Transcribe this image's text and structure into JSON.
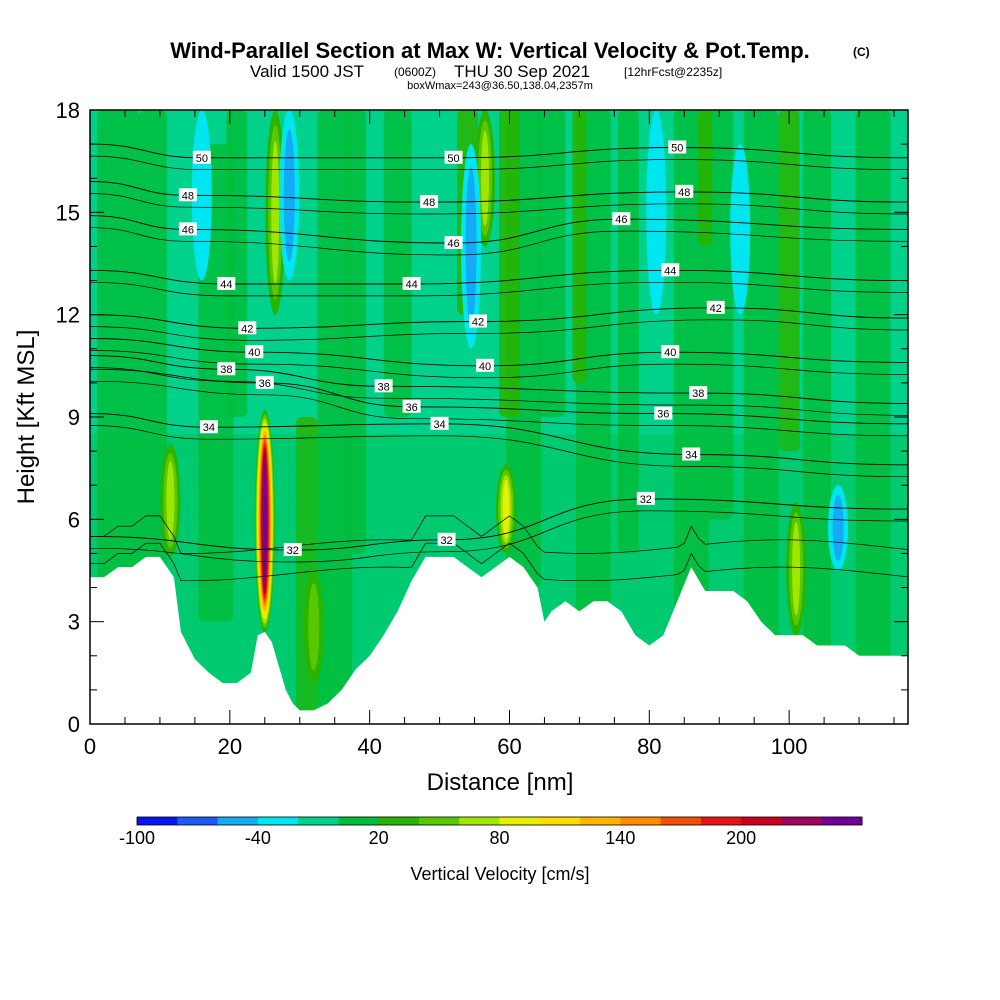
{
  "chart_data": {
    "type": "heatmap",
    "title": "Wind-Parallel Section at Max W: Vertical Velocity & Pot.Temp.",
    "title_mark": "(C)",
    "subtitle_parts": {
      "valid": "Valid 1500 JST",
      "utc": "(0600Z)",
      "date": "THU 30 Sep 2021",
      "fcst": "[12hrFcst@2235z]"
    },
    "info_line": "boxWmax=243@36.50,138.04,2357m",
    "xlabel": "Distance [nm]",
    "ylabel": "Height [Kft MSL]",
    "xlim": [
      0,
      117
    ],
    "ylim": [
      0,
      18
    ],
    "x_ticks": [
      0,
      20,
      40,
      60,
      80,
      100
    ],
    "y_ticks": [
      0,
      3,
      6,
      9,
      12,
      15,
      18
    ],
    "colorbar": {
      "label": "Vertical Velocity [cm/s]",
      "colors": [
        "#0a14f0",
        "#1e5af5",
        "#14aaf5",
        "#00e6f0",
        "#00d28c",
        "#00be3c",
        "#28b400",
        "#5ac800",
        "#a0e600",
        "#e6f000",
        "#ffdc00",
        "#ffb400",
        "#ff8c00",
        "#f05000",
        "#e61414",
        "#c8001e",
        "#a0005a",
        "#6e0096"
      ],
      "tick_values": [
        -100,
        -40,
        20,
        80,
        140,
        200
      ],
      "tick_labels": [
        "-100",
        "-40",
        "20",
        "80",
        "140",
        "200"
      ]
    },
    "terrain_kft": [
      [
        0,
        4.3
      ],
      [
        2,
        4.3
      ],
      [
        4,
        4.6
      ],
      [
        6,
        4.6
      ],
      [
        8,
        4.9
      ],
      [
        10,
        4.9
      ],
      [
        12,
        4.3
      ],
      [
        13,
        2.7
      ],
      [
        15,
        1.9
      ],
      [
        17,
        1.5
      ],
      [
        19,
        1.2
      ],
      [
        21,
        1.2
      ],
      [
        23,
        1.5
      ],
      [
        24,
        2.6
      ],
      [
        25,
        2.7
      ],
      [
        26,
        2.4
      ],
      [
        27,
        1.7
      ],
      [
        28,
        1.0
      ],
      [
        29,
        0.6
      ],
      [
        30,
        0.4
      ],
      [
        32,
        0.4
      ],
      [
        34,
        0.6
      ],
      [
        36,
        1.0
      ],
      [
        38,
        1.6
      ],
      [
        40,
        2.0
      ],
      [
        42,
        2.6
      ],
      [
        44,
        3.3
      ],
      [
        46,
        4.2
      ],
      [
        48,
        4.9
      ],
      [
        50,
        4.9
      ],
      [
        52,
        4.9
      ],
      [
        54,
        4.6
      ],
      [
        56,
        4.3
      ],
      [
        58,
        4.6
      ],
      [
        60,
        4.9
      ],
      [
        62,
        4.6
      ],
      [
        64,
        4.0
      ],
      [
        65,
        3.0
      ],
      [
        66,
        3.3
      ],
      [
        68,
        3.6
      ],
      [
        70,
        3.3
      ],
      [
        72,
        3.6
      ],
      [
        74,
        3.6
      ],
      [
        76,
        3.3
      ],
      [
        78,
        2.6
      ],
      [
        80,
        2.3
      ],
      [
        82,
        2.6
      ],
      [
        84,
        3.6
      ],
      [
        86,
        4.6
      ],
      [
        88,
        3.9
      ],
      [
        90,
        3.9
      ],
      [
        92,
        3.9
      ],
      [
        94,
        3.6
      ],
      [
        96,
        3.0
      ],
      [
        98,
        2.6
      ],
      [
        100,
        2.6
      ],
      [
        102,
        2.6
      ],
      [
        104,
        2.3
      ],
      [
        106,
        2.3
      ],
      [
        108,
        2.3
      ],
      [
        110,
        2.0
      ],
      [
        114,
        2.0
      ],
      [
        117,
        2.0
      ]
    ],
    "updraft_cores": [
      {
        "x": 25.0,
        "y_bottom": 2.7,
        "y_top": 9.2,
        "max_w": 243
      },
      {
        "x": 59.5,
        "y_bottom": 5.0,
        "y_top": 7.6,
        "max_w": 80
      },
      {
        "x": 11.5,
        "y_bottom": 4.9,
        "y_top": 8.2,
        "max_w": 60
      },
      {
        "x": 101.0,
        "y_bottom": 2.6,
        "y_top": 6.5,
        "max_w": 50
      },
      {
        "x": 26.5,
        "y_bottom": 12.0,
        "y_top": 18.0,
        "max_w": 50
      },
      {
        "x": 56.5,
        "y_bottom": 14.0,
        "y_top": 18.0,
        "max_w": 50
      },
      {
        "x": 32.0,
        "y_bottom": 1.2,
        "y_top": 4.5,
        "max_w": 40
      }
    ],
    "downdraft_cores": [
      {
        "x": 28.5,
        "y_bottom": 13.0,
        "y_top": 18.0,
        "min_w": -40
      },
      {
        "x": 54.5,
        "y_bottom": 11.0,
        "y_top": 17.0,
        "min_w": -40
      },
      {
        "x": 81.0,
        "y_bottom": 12.0,
        "y_top": 18.0,
        "min_w": -30
      },
      {
        "x": 107.0,
        "y_bottom": 4.5,
        "y_top": 7.0,
        "min_w": -40
      },
      {
        "x": 16.0,
        "y_bottom": 13.0,
        "y_top": 18.0,
        "min_w": -30
      },
      {
        "x": 93.0,
        "y_bottom": 12.0,
        "y_top": 17.0,
        "min_w": -30
      }
    ],
    "potential_temperature_contours": {
      "interval_c": 1,
      "labels": [
        {
          "text": "50",
          "x": 16.0,
          "y": 16.6
        },
        {
          "text": "50",
          "x": 52.0,
          "y": 16.6
        },
        {
          "text": "50",
          "x": 84.0,
          "y": 16.9
        },
        {
          "text": "48",
          "x": 14.0,
          "y": 15.5
        },
        {
          "text": "48",
          "x": 48.5,
          "y": 15.3
        },
        {
          "text": "48",
          "x": 85.0,
          "y": 15.6
        },
        {
          "text": "46",
          "x": 14.0,
          "y": 14.5
        },
        {
          "text": "46",
          "x": 52.0,
          "y": 14.1
        },
        {
          "text": "46",
          "x": 76.0,
          "y": 14.8
        },
        {
          "text": "44",
          "x": 19.5,
          "y": 12.9
        },
        {
          "text": "44",
          "x": 46.0,
          "y": 12.9
        },
        {
          "text": "44",
          "x": 83.0,
          "y": 13.3
        },
        {
          "text": "42",
          "x": 22.5,
          "y": 11.6
        },
        {
          "text": "42",
          "x": 55.5,
          "y": 11.8
        },
        {
          "text": "42",
          "x": 89.5,
          "y": 12.2
        },
        {
          "text": "40",
          "x": 23.5,
          "y": 10.9
        },
        {
          "text": "40",
          "x": 56.5,
          "y": 10.5
        },
        {
          "text": "40",
          "x": 83.0,
          "y": 10.9
        },
        {
          "text": "38",
          "x": 19.5,
          "y": 10.4
        },
        {
          "text": "38",
          "x": 42.0,
          "y": 9.9
        },
        {
          "text": "38",
          "x": 87.0,
          "y": 9.7
        },
        {
          "text": "36",
          "x": 25.0,
          "y": 10.0
        },
        {
          "text": "36",
          "x": 46.0,
          "y": 9.3
        },
        {
          "text": "36",
          "x": 82.0,
          "y": 9.1
        },
        {
          "text": "34",
          "x": 17.0,
          "y": 8.7
        },
        {
          "text": "34",
          "x": 50.0,
          "y": 8.8
        },
        {
          "text": "34",
          "x": 86.0,
          "y": 7.9
        },
        {
          "text": "32",
          "x": 29.0,
          "y": 5.1
        },
        {
          "text": "32",
          "x": 51.0,
          "y": 5.4
        },
        {
          "text": "32",
          "x": 79.5,
          "y": 6.6
        }
      ]
    }
  }
}
